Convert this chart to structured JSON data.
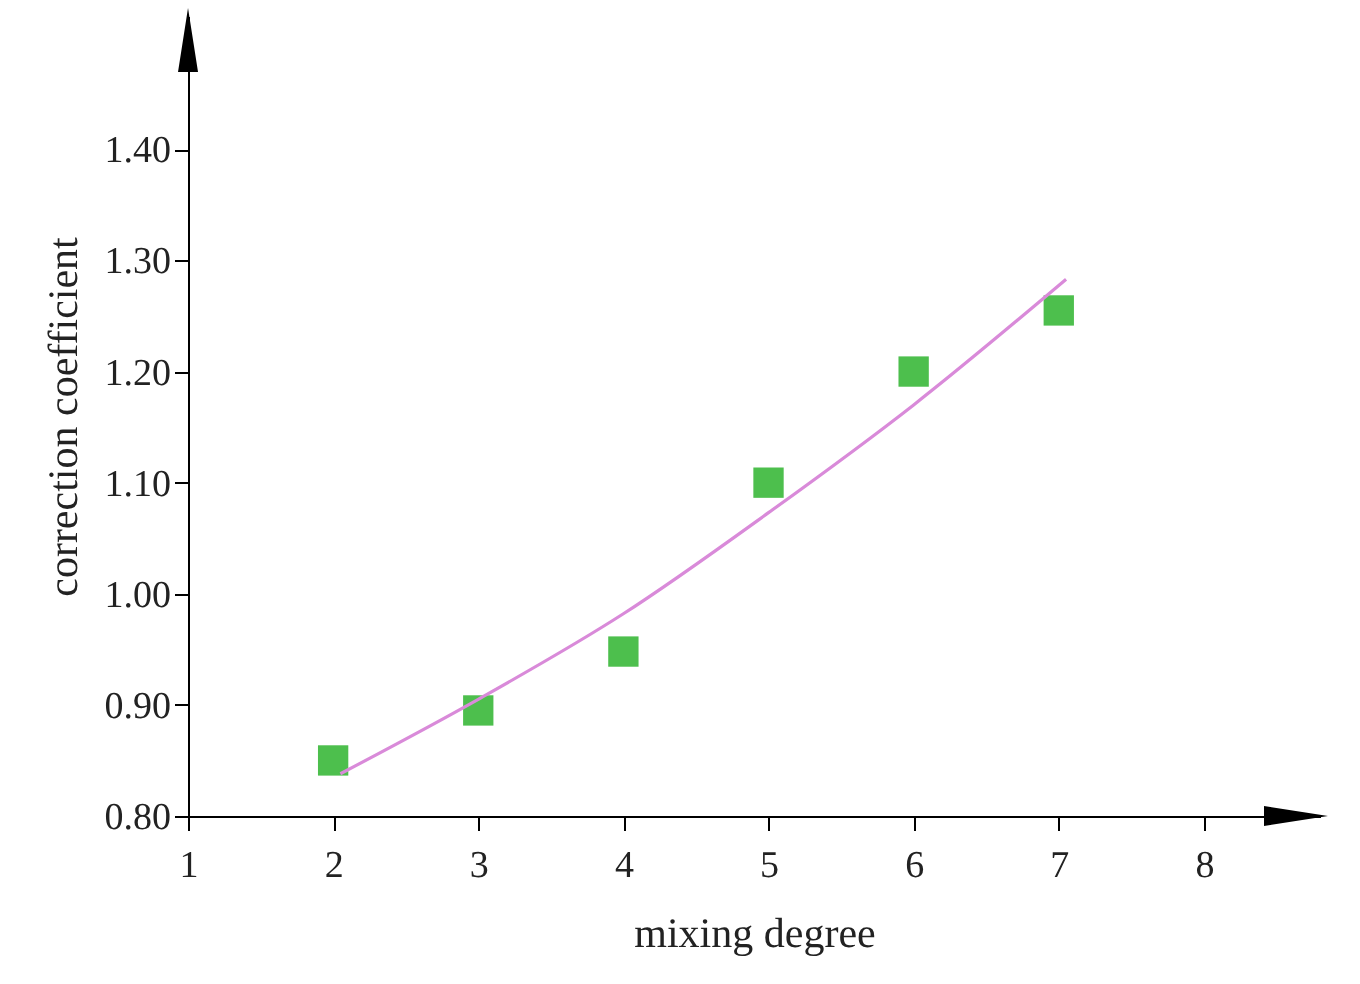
{
  "chart_data": {
    "type": "scatter",
    "xlabel": "mixing degree",
    "ylabel": "correction coefficient",
    "xlim": [
      1,
      8.8
    ],
    "xticks": [
      1,
      2,
      3,
      4,
      5,
      6,
      7,
      8
    ],
    "ylim": [
      0.8,
      1.52
    ],
    "yticks": [
      {
        "value": 0.8,
        "label": "0.80"
      },
      {
        "value": 0.9,
        "label": "0.90"
      },
      {
        "value": 1.0,
        "label": "1.00"
      },
      {
        "value": 1.1,
        "label": "1.10"
      },
      {
        "value": 1.2,
        "label": "1.20"
      },
      {
        "value": 1.3,
        "label": "1.30"
      },
      {
        "value": 1.4,
        "label": "1.40"
      }
    ],
    "grid": false,
    "marker": "square",
    "series": [
      {
        "color": "#4dbf4d",
        "x": [
          2,
          3,
          4,
          5,
          6,
          7
        ],
        "values": [
          0.85,
          0.895,
          0.948,
          1.1,
          1.2,
          1.255
        ]
      },
      {
        "type": "line",
        "color": "#d98ad9",
        "marker": "none",
        "x": [
          2.05,
          3,
          4,
          5,
          6,
          7.05
        ],
        "values": [
          0.838,
          0.905,
          0.982,
          1.073,
          1.17,
          1.283
        ]
      }
    ]
  }
}
